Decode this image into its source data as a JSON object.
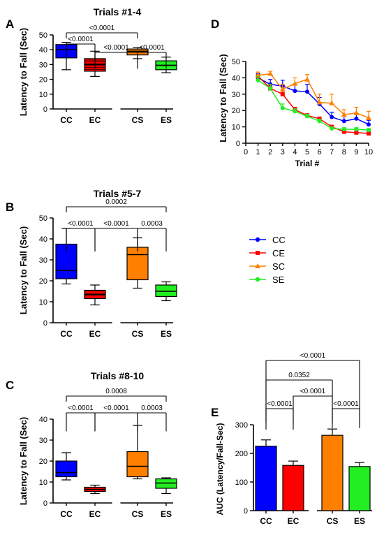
{
  "chart_data": [
    {
      "panel": "A",
      "type": "box",
      "title": "Trials #1-4",
      "ylabel": "Latency to  Fall (Sec)",
      "ylim": [
        0,
        50
      ],
      "yticks": [
        "0",
        "10",
        "20",
        "30",
        "40",
        "50"
      ],
      "categories": [
        "CC",
        "EC",
        "CS",
        "ES"
      ],
      "boxes": [
        {
          "name": "CC",
          "color": "#0000ff",
          "min": 26.5,
          "q1": 34.5,
          "median": 40,
          "q3": 43.5,
          "max": 45
        },
        {
          "name": "EC",
          "color": "#ff0000",
          "min": 22,
          "q1": 25.5,
          "median": 30,
          "q3": 34,
          "max": 39
        },
        {
          "name": "CS",
          "color": "#ff8000",
          "min": 34,
          "q1": 36.5,
          "median": 39,
          "q3": 40.5,
          "max": 41.5
        },
        {
          "name": "ES",
          "color": "#22ee22",
          "min": 24.5,
          "q1": 26.5,
          "median": 29.5,
          "q3": 32.5,
          "max": 35
        }
      ],
      "comparisons": [
        {
          "from": 0,
          "to": 2,
          "p": "<0.0001"
        },
        {
          "from": 0,
          "to": 1,
          "p": "<0.0001"
        },
        {
          "from": 1,
          "to": 2,
          "p": "<0.0001"
        },
        {
          "from": 2,
          "to": 3,
          "p": "<0.0001"
        }
      ]
    },
    {
      "panel": "B",
      "type": "box",
      "title": "Trials #5-7",
      "ylabel": "Latency to  Fall (Sec)",
      "ylim": [
        0,
        50
      ],
      "yticks": [
        "0",
        "10",
        "20",
        "30",
        "40",
        "50"
      ],
      "categories": [
        "CC",
        "EC",
        "CS",
        "ES"
      ],
      "boxes": [
        {
          "name": "CC",
          "color": "#0000ff",
          "min": 18.5,
          "q1": 21,
          "median": 25,
          "q3": 37.5,
          "max": 45
        },
        {
          "name": "EC",
          "color": "#ff0000",
          "min": 8.5,
          "q1": 11.5,
          "median": 13.5,
          "q3": 15.5,
          "max": 18
        },
        {
          "name": "CS",
          "color": "#ff8000",
          "min": 16.5,
          "q1": 20.5,
          "median": 32.5,
          "q3": 36,
          "max": 40.5
        },
        {
          "name": "ES",
          "color": "#22ee22",
          "min": 10.5,
          "q1": 12.5,
          "median": 15,
          "q3": 18,
          "max": 19.5
        }
      ],
      "comparisons": [
        {
          "from": 0,
          "to": 3,
          "p": "0.0002"
        },
        {
          "from": 0,
          "to": 1,
          "p": "<0.0001"
        },
        {
          "from": 1,
          "to": 2,
          "p": "<0.0001"
        },
        {
          "from": 2,
          "to": 3,
          "p": "0.0003"
        }
      ]
    },
    {
      "panel": "C",
      "type": "box",
      "title": "Trials #8-10",
      "ylabel": "Latency to  Fall (Sec)",
      "ylim": [
        0,
        40
      ],
      "yticks": [
        "0",
        "10",
        "20",
        "30",
        "40"
      ],
      "categories": [
        "CC",
        "EC",
        "CS",
        "ES"
      ],
      "boxes": [
        {
          "name": "CC",
          "color": "#0000ff",
          "min": 11,
          "q1": 12.5,
          "median": 14.5,
          "q3": 20,
          "max": 24
        },
        {
          "name": "EC",
          "color": "#ff0000",
          "min": 4.5,
          "q1": 5.5,
          "median": 6.5,
          "q3": 7.5,
          "max": 8.5
        },
        {
          "name": "CS",
          "color": "#ff8000",
          "min": 11.5,
          "q1": 12.5,
          "median": 17.5,
          "q3": 24.5,
          "max": 37
        },
        {
          "name": "ES",
          "color": "#22ee22",
          "min": 4.5,
          "q1": 7,
          "median": 9.5,
          "q3": 11.5,
          "max": 12
        }
      ],
      "comparisons": [
        {
          "from": 0,
          "to": 3,
          "p": "0.0008"
        },
        {
          "from": 0,
          "to": 1,
          "p": "<0.0001"
        },
        {
          "from": 1,
          "to": 2,
          "p": "<0.0001"
        },
        {
          "from": 2,
          "to": 3,
          "p": "0.0003"
        }
      ]
    },
    {
      "panel": "D",
      "type": "line",
      "ylabel": "Latency to  Fall (Sec)",
      "xlabel": "Trial #",
      "xlim": [
        0,
        10
      ],
      "ylim": [
        0,
        50
      ],
      "xticks": [
        "0",
        "1",
        "2",
        "3",
        "4",
        "5",
        "6",
        "7",
        "8",
        "9",
        "10"
      ],
      "yticks": [
        "0",
        "10",
        "20",
        "30",
        "40",
        "50"
      ],
      "x": [
        1,
        2,
        3,
        4,
        5,
        6,
        7,
        8,
        9,
        10
      ],
      "series": [
        {
          "name": "CC",
          "color": "#0000ff",
          "marker": "circle",
          "values": [
            40,
            36,
            35,
            32,
            31.5,
            24,
            16,
            13.5,
            15,
            11.5
          ],
          "err": [
            2.5,
            3,
            3.5,
            4,
            4.5,
            4,
            3,
            3,
            3,
            2.5
          ]
        },
        {
          "name": "CE",
          "color": "#ff0000",
          "marker": "square",
          "values": [
            41,
            33.5,
            30,
            20.5,
            17,
            15,
            10,
            7,
            6.5,
            6
          ],
          "err": [
            2.5,
            2,
            2,
            1.5,
            1,
            1,
            1,
            1,
            1,
            0.8
          ]
        },
        {
          "name": "SC",
          "color": "#ff8000",
          "marker": "triangle",
          "values": [
            41.5,
            42.5,
            33,
            36.5,
            39,
            25,
            24.5,
            17.5,
            18.5,
            15.5
          ],
          "err": [
            2,
            1.5,
            3,
            3.5,
            3,
            5,
            5.5,
            3,
            3.5,
            4
          ]
        },
        {
          "name": "SE",
          "color": "#22ee22",
          "marker": "circle",
          "values": [
            38.5,
            33.5,
            21.5,
            19.5,
            16.5,
            13.5,
            9,
            8.5,
            8.5,
            8
          ],
          "err": [
            2.5,
            2.5,
            2.5,
            1.5,
            1.2,
            1.2,
            1,
            1,
            1,
            1
          ]
        }
      ]
    },
    {
      "panel": "E",
      "type": "bar",
      "ylabel": "AUC (Latency/Fall-Sec)",
      "ylim": [
        0,
        300
      ],
      "yticks": [
        "0",
        "100",
        "200",
        "300"
      ],
      "categories": [
        "CC",
        "EC",
        "CS",
        "ES"
      ],
      "values": [
        225,
        158,
        263,
        154
      ],
      "err": [
        22,
        15,
        22,
        14
      ],
      "colors": [
        "#0000ff",
        "#ff0000",
        "#ff8000",
        "#22ee22"
      ],
      "comparisons": [
        {
          "from": 0,
          "to": 3,
          "p": "<0.0001"
        },
        {
          "from": 0,
          "to": 2,
          "p": "0.0352"
        },
        {
          "from": 1,
          "to": 2,
          "p": "<0.0001"
        },
        {
          "from": 0,
          "to": 1,
          "p": "<0.0001"
        },
        {
          "from": 2,
          "to": 3,
          "p": "<0.0001"
        }
      ]
    }
  ]
}
